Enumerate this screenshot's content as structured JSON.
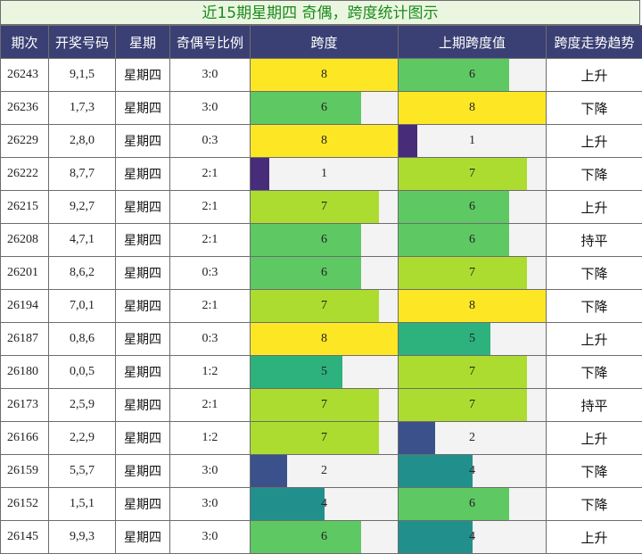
{
  "title": "近15期星期四 奇偶，跨度统计图示",
  "columns": [
    "期次",
    "开奖号码",
    "星期",
    "奇偶号比例",
    "跨度",
    "上期跨度值",
    "跨度走势趋势"
  ],
  "colors": {
    "1": "#472c7a",
    "2": "#3b518b",
    "4": "#21908d",
    "5": "#2db27d",
    "6": "#5ec962",
    "7": "#addc30",
    "8": "#fde725"
  },
  "chart_data": {
    "type": "table",
    "max_span": 8,
    "rows": [
      {
        "issue": "26243",
        "numbers": "9,1,5",
        "weekday": "星期四",
        "odd_even": "3:0",
        "span": 8,
        "prev_span": 6,
        "trend": "上升"
      },
      {
        "issue": "26236",
        "numbers": "1,7,3",
        "weekday": "星期四",
        "odd_even": "3:0",
        "span": 6,
        "prev_span": 8,
        "trend": "下降"
      },
      {
        "issue": "26229",
        "numbers": "2,8,0",
        "weekday": "星期四",
        "odd_even": "0:3",
        "span": 8,
        "prev_span": 1,
        "trend": "上升"
      },
      {
        "issue": "26222",
        "numbers": "8,7,7",
        "weekday": "星期四",
        "odd_even": "2:1",
        "span": 1,
        "prev_span": 7,
        "trend": "下降"
      },
      {
        "issue": "26215",
        "numbers": "9,2,7",
        "weekday": "星期四",
        "odd_even": "2:1",
        "span": 7,
        "prev_span": 6,
        "trend": "上升"
      },
      {
        "issue": "26208",
        "numbers": "4,7,1",
        "weekday": "星期四",
        "odd_even": "2:1",
        "span": 6,
        "prev_span": 6,
        "trend": "持平"
      },
      {
        "issue": "26201",
        "numbers": "8,6,2",
        "weekday": "星期四",
        "odd_even": "0:3",
        "span": 6,
        "prev_span": 7,
        "trend": "下降"
      },
      {
        "issue": "26194",
        "numbers": "7,0,1",
        "weekday": "星期四",
        "odd_even": "2:1",
        "span": 7,
        "prev_span": 8,
        "trend": "下降"
      },
      {
        "issue": "26187",
        "numbers": "0,8,6",
        "weekday": "星期四",
        "odd_even": "0:3",
        "span": 8,
        "prev_span": 5,
        "trend": "上升"
      },
      {
        "issue": "26180",
        "numbers": "0,0,5",
        "weekday": "星期四",
        "odd_even": "1:2",
        "span": 5,
        "prev_span": 7,
        "trend": "下降"
      },
      {
        "issue": "26173",
        "numbers": "2,5,9",
        "weekday": "星期四",
        "odd_even": "2:1",
        "span": 7,
        "prev_span": 7,
        "trend": "持平"
      },
      {
        "issue": "26166",
        "numbers": "2,2,9",
        "weekday": "星期四",
        "odd_even": "1:2",
        "span": 7,
        "prev_span": 2,
        "trend": "上升"
      },
      {
        "issue": "26159",
        "numbers": "5,5,7",
        "weekday": "星期四",
        "odd_even": "3:0",
        "span": 2,
        "prev_span": 4,
        "trend": "下降"
      },
      {
        "issue": "26152",
        "numbers": "1,5,1",
        "weekday": "星期四",
        "odd_even": "3:0",
        "span": 4,
        "prev_span": 6,
        "trend": "下降"
      },
      {
        "issue": "26145",
        "numbers": "9,9,3",
        "weekday": "星期四",
        "odd_even": "3:0",
        "span": 6,
        "prev_span": 4,
        "trend": "上升"
      }
    ]
  }
}
